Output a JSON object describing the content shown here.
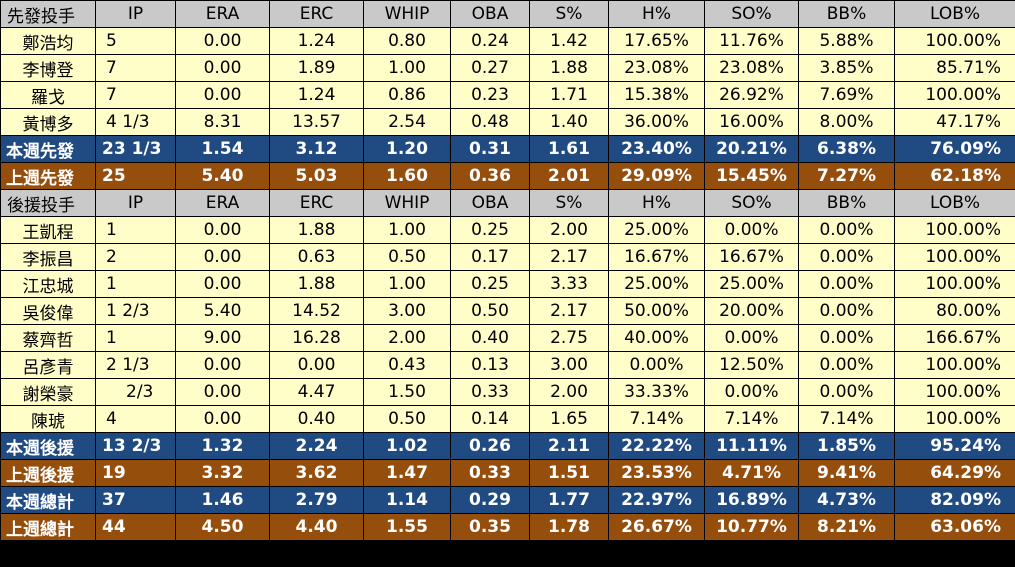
{
  "headers": {
    "starters": [
      "先發投手",
      "IP",
      "ERA",
      "ERC",
      "WHIP",
      "OBA",
      "S%",
      "H%",
      "SO%",
      "BB%",
      "LOB%"
    ],
    "relievers": [
      "後援投手",
      "IP",
      "ERA",
      "ERC",
      "WHIP",
      "OBA",
      "S%",
      "H%",
      "SO%",
      "BB%",
      "LOB%"
    ]
  },
  "starters": [
    [
      "鄭浩均",
      "5",
      "0.00",
      "1.24",
      "0.80",
      "0.24",
      "1.42",
      "17.65%",
      "11.76%",
      "5.88%",
      "100.00%"
    ],
    [
      "李博登",
      "7",
      "0.00",
      "1.89",
      "1.00",
      "0.27",
      "1.88",
      "23.08%",
      "23.08%",
      "3.85%",
      "85.71%"
    ],
    [
      "羅戈",
      "7",
      "0.00",
      "1.24",
      "0.86",
      "0.23",
      "1.71",
      "15.38%",
      "26.92%",
      "7.69%",
      "100.00%"
    ],
    [
      "黃博多",
      "4 1/3",
      "8.31",
      "13.57",
      "2.54",
      "0.48",
      "1.40",
      "36.00%",
      "16.00%",
      "8.00%",
      "47.17%"
    ]
  ],
  "starter_summary": [
    [
      "本週先發",
      "23 1/3",
      "1.54",
      "3.12",
      "1.20",
      "0.31",
      "1.61",
      "23.40%",
      "20.21%",
      "6.38%",
      "76.09%"
    ],
    [
      "上週先發",
      "25",
      "5.40",
      "5.03",
      "1.60",
      "0.36",
      "2.01",
      "29.09%",
      "15.45%",
      "7.27%",
      "62.18%"
    ]
  ],
  "relievers": [
    [
      "王凱程",
      "1",
      "0.00",
      "1.88",
      "1.00",
      "0.25",
      "2.00",
      "25.00%",
      "0.00%",
      "0.00%",
      "100.00%"
    ],
    [
      "李振昌",
      "2",
      "0.00",
      "0.63",
      "0.50",
      "0.17",
      "2.17",
      "16.67%",
      "16.67%",
      "0.00%",
      "100.00%"
    ],
    [
      "江忠城",
      "1",
      "0.00",
      "1.88",
      "1.00",
      "0.25",
      "3.33",
      "25.00%",
      "25.00%",
      "0.00%",
      "100.00%"
    ],
    [
      "吳俊偉",
      "1 2/3",
      "5.40",
      "14.52",
      "3.00",
      "0.50",
      "2.17",
      "50.00%",
      "20.00%",
      "0.00%",
      "80.00%"
    ],
    [
      "蔡齊哲",
      "1",
      "9.00",
      "16.28",
      "2.00",
      "0.40",
      "2.75",
      "40.00%",
      "0.00%",
      "0.00%",
      "166.67%"
    ],
    [
      "呂彥青",
      "2 1/3",
      "0.00",
      "0.00",
      "0.43",
      "0.13",
      "3.00",
      "0.00%",
      "12.50%",
      "0.00%",
      "100.00%"
    ],
    [
      "謝榮豪",
      "2/3",
      "0.00",
      "4.47",
      "1.50",
      "0.33",
      "2.00",
      "33.33%",
      "0.00%",
      "0.00%",
      "100.00%"
    ],
    [
      "陳琥",
      "4",
      "0.00",
      "0.40",
      "0.50",
      "0.14",
      "1.65",
      "7.14%",
      "7.14%",
      "7.14%",
      "100.00%"
    ]
  ],
  "reliever_summary": [
    [
      "本週後援",
      "13 2/3",
      "1.32",
      "2.24",
      "1.02",
      "0.26",
      "2.11",
      "22.22%",
      "11.11%",
      "1.85%",
      "95.24%"
    ],
    [
      "上週後援",
      "19",
      "3.32",
      "3.62",
      "1.47",
      "0.33",
      "1.51",
      "23.53%",
      "4.71%",
      "9.41%",
      "64.29%"
    ]
  ],
  "totals": [
    [
      "本週總計",
      "37",
      "1.46",
      "2.79",
      "1.14",
      "0.29",
      "1.77",
      "22.97%",
      "16.89%",
      "4.73%",
      "82.09%"
    ],
    [
      "上週總計",
      "44",
      "4.50",
      "4.40",
      "1.55",
      "0.35",
      "1.78",
      "26.67%",
      "10.77%",
      "8.21%",
      "63.06%"
    ]
  ],
  "colors": {
    "header_bg": "#c9c9c9",
    "player_row_bg": "#fffdc8",
    "this_week_bg": "#1f4a82",
    "last_week_bg": "#964e0d",
    "grid": "#000000"
  }
}
